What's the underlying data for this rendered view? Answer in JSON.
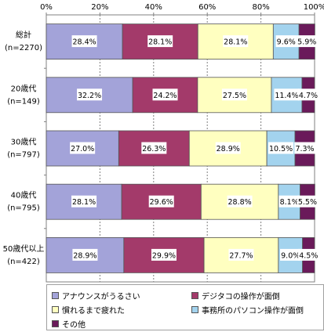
{
  "chart_data": {
    "type": "bar",
    "orientation": "horizontal",
    "stacked": "percent",
    "xlim": [
      0,
      100
    ],
    "x_ticks": [
      "0%",
      "20%",
      "40%",
      "60%",
      "80%",
      "100%"
    ],
    "categories": [
      [
        "総計",
        "(n=2270)"
      ],
      [
        "20歳代",
        "(n=149)"
      ],
      [
        "30歳代",
        "(n=797)"
      ],
      [
        "40歳代",
        "(n=795)"
      ],
      [
        "50歳代以上",
        "(n=422)"
      ]
    ],
    "series": [
      {
        "name": "アナウンスがうるさい",
        "color": "#a3a3d9",
        "values": [
          28.4,
          32.2,
          27.0,
          28.1,
          28.9
        ],
        "labels": [
          "28.4%",
          "32.2%",
          "27.0%",
          "28.1%",
          "28.9%"
        ]
      },
      {
        "name": "デジタコの操作が面倒",
        "color": "#a33a6a",
        "values": [
          28.1,
          24.2,
          26.3,
          29.6,
          29.9
        ],
        "labels": [
          "28.1%",
          "24.2%",
          "26.3%",
          "29.6%",
          "29.9%"
        ]
      },
      {
        "name": "慣れるまで疲れた",
        "color": "#ffffc0",
        "values": [
          28.1,
          27.5,
          28.9,
          28.8,
          27.7
        ],
        "labels": [
          "28.1%",
          "27.5%",
          "28.9%",
          "28.8%",
          "27.7%"
        ]
      },
      {
        "name": "事務所のパソコン操作が面倒",
        "color": "#a3d3ee",
        "values": [
          9.6,
          11.4,
          10.5,
          8.1,
          9.0
        ],
        "labels": [
          "9.6%",
          "11.4%",
          "10.5%",
          "8.1%",
          "9.0%"
        ]
      },
      {
        "name": "その他",
        "color": "#6a1a5a",
        "values": [
          5.9,
          4.7,
          7.3,
          5.5,
          4.5
        ],
        "labels": [
          "5.9%",
          "4.7%",
          "7.3%",
          "5.5%",
          "4.5%"
        ]
      }
    ],
    "grid": true,
    "legend_position": "bottom"
  }
}
